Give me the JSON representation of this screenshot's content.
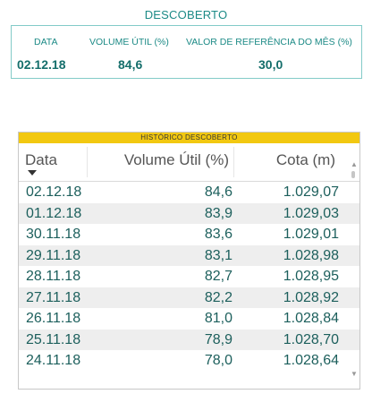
{
  "section_title": "DESCOBERTO",
  "kpis": {
    "date_label": "DATA",
    "date_value": "02.12.18",
    "volume_label": "VOLUME ÚTIL (%)",
    "volume_value": "84,6",
    "reference_label": "VALOR DE REFERÊNCIA DO MÊS (%)",
    "reference_value": "30,0"
  },
  "table": {
    "banner": "HISTÓRICO DESCOBERTO",
    "columns": [
      "Data",
      "Volume Útil (%)",
      "Cota (m)"
    ],
    "sort_column": "Data",
    "sort_direction": "descending",
    "rows": [
      [
        "02.12.18",
        "84,6",
        "1.029,07"
      ],
      [
        "01.12.18",
        "83,9",
        "1.029,03"
      ],
      [
        "30.11.18",
        "83,6",
        "1.029,01"
      ],
      [
        "29.11.18",
        "83,1",
        "1.028,98"
      ],
      [
        "28.11.18",
        "82,7",
        "1.028,95"
      ],
      [
        "27.11.18",
        "82,2",
        "1.028,92"
      ],
      [
        "26.11.18",
        "81,0",
        "1.028,84"
      ],
      [
        "25.11.18",
        "78,9",
        "1.028,70"
      ],
      [
        "24.11.18",
        "78,0",
        "1.028,64"
      ]
    ]
  },
  "colors": {
    "accent": "#1c8a86",
    "banner": "#f2c811",
    "row_alt": "#eeeeee"
  },
  "icons": [
    "sort-down-arrow",
    "scroll-up-arrow",
    "scroll-down-arrow"
  ]
}
